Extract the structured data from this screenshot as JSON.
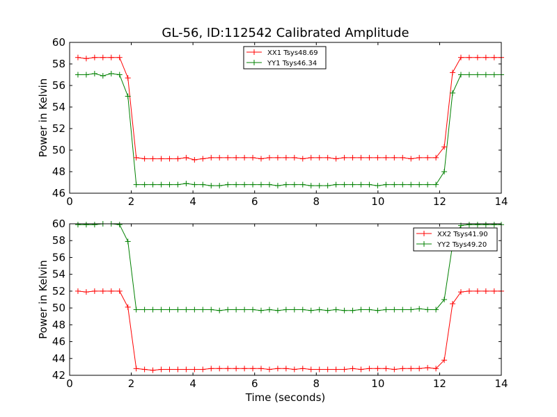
{
  "figure": {
    "title": "GL-56, ID:112542 Calibrated Amplitude"
  },
  "chart_data": [
    {
      "type": "line",
      "title": "GL-56, ID:112542 Calibrated Amplitude",
      "xlabel": "",
      "ylabel": "Power in Kelvin",
      "xlim": [
        0,
        14
      ],
      "ylim": [
        46,
        60
      ],
      "xticks": [
        0,
        2,
        4,
        6,
        8,
        10,
        12,
        14
      ],
      "yticks": [
        46,
        48,
        50,
        52,
        54,
        56,
        58,
        60
      ],
      "grid": false,
      "legend_position": "top-center",
      "x": [
        0.27,
        0.54,
        0.81,
        1.08,
        1.35,
        1.62,
        1.89,
        2.16,
        2.43,
        2.7,
        2.97,
        3.24,
        3.51,
        3.78,
        4.05,
        4.32,
        4.59,
        4.86,
        5.13,
        5.4,
        5.67,
        5.94,
        6.21,
        6.48,
        6.75,
        7.02,
        7.29,
        7.56,
        7.83,
        8.1,
        8.37,
        8.64,
        8.91,
        9.18,
        9.45,
        9.72,
        9.99,
        10.26,
        10.53,
        10.8,
        11.07,
        11.34,
        11.61,
        11.88,
        12.15,
        12.42,
        12.69,
        12.96,
        13.23,
        13.5,
        13.77,
        14.0
      ],
      "series": [
        {
          "name": "XX1 Tsys48.69",
          "color": "#ff0000",
          "values": [
            58.6,
            58.5,
            58.6,
            58.6,
            58.6,
            58.6,
            56.7,
            49.3,
            49.2,
            49.2,
            49.2,
            49.2,
            49.2,
            49.3,
            49.1,
            49.2,
            49.3,
            49.3,
            49.3,
            49.3,
            49.3,
            49.3,
            49.2,
            49.3,
            49.3,
            49.3,
            49.3,
            49.2,
            49.3,
            49.3,
            49.3,
            49.2,
            49.3,
            49.3,
            49.3,
            49.3,
            49.3,
            49.3,
            49.3,
            49.3,
            49.2,
            49.3,
            49.3,
            49.3,
            50.3,
            57.2,
            58.6,
            58.6,
            58.6,
            58.6,
            58.6,
            58.6
          ]
        },
        {
          "name": "YY1 Tsys46.34",
          "color": "#008000",
          "values": [
            57.0,
            57.0,
            57.1,
            56.9,
            57.1,
            57.0,
            55.0,
            46.8,
            46.8,
            46.8,
            46.8,
            46.8,
            46.8,
            46.9,
            46.8,
            46.8,
            46.7,
            46.7,
            46.8,
            46.8,
            46.8,
            46.8,
            46.8,
            46.8,
            46.7,
            46.8,
            46.8,
            46.8,
            46.7,
            46.7,
            46.7,
            46.8,
            46.8,
            46.8,
            46.8,
            46.8,
            46.7,
            46.8,
            46.8,
            46.8,
            46.8,
            46.8,
            46.8,
            46.8,
            48.0,
            55.3,
            57.0,
            57.0,
            57.0,
            57.0,
            57.0,
            57.0
          ]
        }
      ]
    },
    {
      "type": "line",
      "title": "",
      "xlabel": "Time (seconds)",
      "ylabel": "Power in Kelvin",
      "xlim": [
        0,
        14
      ],
      "ylim": [
        42,
        60
      ],
      "xticks": [
        0,
        2,
        4,
        6,
        8,
        10,
        12,
        14
      ],
      "yticks": [
        42,
        44,
        46,
        48,
        50,
        52,
        54,
        56,
        58,
        60
      ],
      "grid": false,
      "legend_position": "top-right",
      "x": [
        0.27,
        0.54,
        0.81,
        1.08,
        1.35,
        1.62,
        1.89,
        2.16,
        2.43,
        2.7,
        2.97,
        3.24,
        3.51,
        3.78,
        4.05,
        4.32,
        4.59,
        4.86,
        5.13,
        5.4,
        5.67,
        5.94,
        6.21,
        6.48,
        6.75,
        7.02,
        7.29,
        7.56,
        7.83,
        8.1,
        8.37,
        8.64,
        8.91,
        9.18,
        9.45,
        9.72,
        9.99,
        10.26,
        10.53,
        10.8,
        11.07,
        11.34,
        11.61,
        11.88,
        12.15,
        12.42,
        12.69,
        12.96,
        13.23,
        13.5,
        13.77,
        14.0
      ],
      "series": [
        {
          "name": "XX2 Tsys41.90",
          "color": "#ff0000",
          "values": [
            52.0,
            51.9,
            52.0,
            52.0,
            52.0,
            52.0,
            50.1,
            42.8,
            42.7,
            42.6,
            42.7,
            42.7,
            42.7,
            42.7,
            42.7,
            42.7,
            42.8,
            42.8,
            42.8,
            42.8,
            42.8,
            42.8,
            42.8,
            42.7,
            42.8,
            42.8,
            42.7,
            42.8,
            42.7,
            42.7,
            42.7,
            42.7,
            42.7,
            42.8,
            42.7,
            42.8,
            42.8,
            42.8,
            42.7,
            42.8,
            42.8,
            42.8,
            42.9,
            42.8,
            43.8,
            50.5,
            51.9,
            52.0,
            52.0,
            52.0,
            52.0,
            52.0
          ]
        },
        {
          "name": "YY2 Tsys49.20",
          "color": "#008000",
          "values": [
            59.9,
            59.9,
            59.9,
            60.0,
            60.0,
            59.9,
            57.9,
            49.8,
            49.8,
            49.8,
            49.8,
            49.8,
            49.8,
            49.8,
            49.8,
            49.8,
            49.8,
            49.7,
            49.8,
            49.8,
            49.8,
            49.8,
            49.7,
            49.8,
            49.7,
            49.8,
            49.8,
            49.8,
            49.7,
            49.8,
            49.7,
            49.8,
            49.7,
            49.7,
            49.8,
            49.8,
            49.7,
            49.8,
            49.8,
            49.8,
            49.8,
            49.9,
            49.8,
            49.8,
            51.0,
            57.5,
            59.8,
            59.9,
            59.9,
            59.9,
            59.9,
            59.9
          ]
        }
      ]
    }
  ]
}
